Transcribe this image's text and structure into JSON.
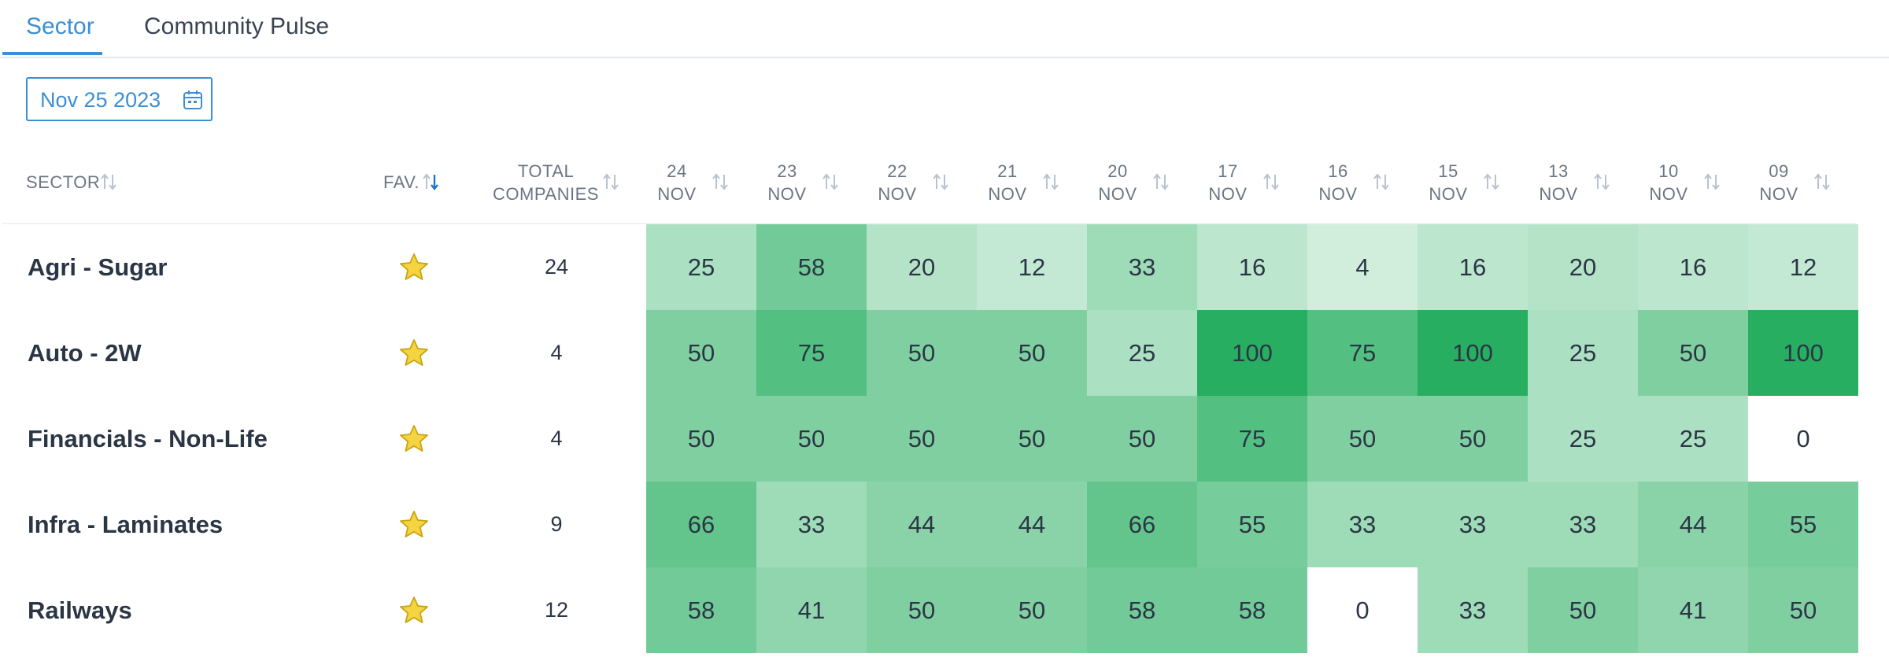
{
  "tabs": [
    {
      "label": "Sector",
      "active": true
    },
    {
      "label": "Community Pulse",
      "active": false
    }
  ],
  "date_picker": {
    "value": "Nov 25 2023",
    "icon": "calendar-icon"
  },
  "columns": {
    "sector": "SECTOR",
    "fav": "FAV.",
    "total_line1": "TOTAL",
    "total_line2": "COMPANIES",
    "dates": [
      {
        "day": "24",
        "month": "NOV"
      },
      {
        "day": "23",
        "month": "NOV"
      },
      {
        "day": "22",
        "month": "NOV"
      },
      {
        "day": "21",
        "month": "NOV"
      },
      {
        "day": "20",
        "month": "NOV"
      },
      {
        "day": "17",
        "month": "NOV"
      },
      {
        "day": "16",
        "month": "NOV"
      },
      {
        "day": "15",
        "month": "NOV"
      },
      {
        "day": "13",
        "month": "NOV"
      },
      {
        "day": "10",
        "month": "NOV"
      },
      {
        "day": "09",
        "month": "NOV"
      }
    ]
  },
  "rows": [
    {
      "sector": "Agri - Sugar",
      "fav": true,
      "total": "24",
      "values": [
        25,
        58,
        20,
        12,
        33,
        16,
        4,
        16,
        20,
        16,
        12
      ]
    },
    {
      "sector": "Auto - 2W",
      "fav": true,
      "total": "4",
      "values": [
        50,
        75,
        50,
        50,
        25,
        100,
        75,
        100,
        25,
        50,
        100
      ]
    },
    {
      "sector": "Financials - Non-Life",
      "fav": true,
      "total": "4",
      "values": [
        50,
        50,
        50,
        50,
        50,
        75,
        50,
        50,
        25,
        25,
        0
      ]
    },
    {
      "sector": "Infra - Laminates",
      "fav": true,
      "total": "9",
      "values": [
        66,
        33,
        44,
        44,
        66,
        55,
        33,
        33,
        33,
        44,
        55
      ]
    },
    {
      "sector": "Railways",
      "fav": true,
      "total": "12",
      "values": [
        58,
        41,
        50,
        50,
        58,
        58,
        0,
        33,
        50,
        41,
        50
      ]
    }
  ],
  "colors": {
    "accent": "#3a8fd6",
    "heat_low": "#ffffff",
    "heat_high": "#27ae60",
    "star_fill": "#f5d442",
    "star_stroke": "#c9a410"
  }
}
